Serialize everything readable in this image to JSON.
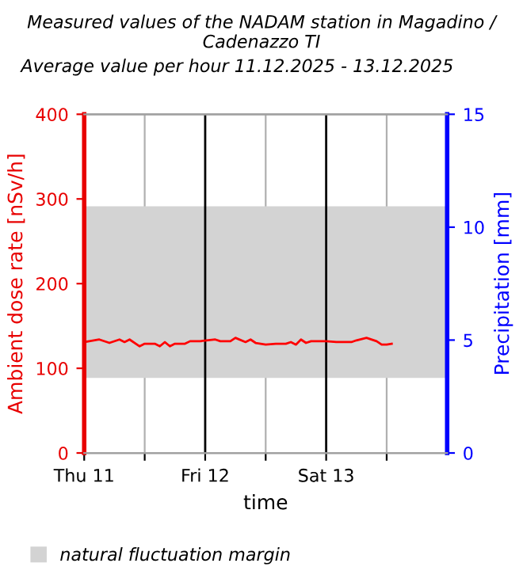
{
  "chart_data": {
    "type": "line",
    "title": "Measured values of the NADAM station in Magadino / Cadenazzo TI",
    "subtitle": "Average value per hour 11.12.2025 - 13.12.2025",
    "xlabel": "time",
    "ylabel": "Ambient dose rate [nSv/h]",
    "y2label": "Precipitation [mm]",
    "xlim": [
      "2025-12-11T00:00",
      "2025-12-14T00:00"
    ],
    "xticks": [
      {
        "value": "2025-12-11T00:00",
        "label": "Thu 11"
      },
      {
        "value": "2025-12-11T12:00",
        "label": null
      },
      {
        "value": "2025-12-12T00:00",
        "label": "Fri 12"
      },
      {
        "value": "2025-12-12T12:00",
        "label": null
      },
      {
        "value": "2025-12-13T00:00",
        "label": "Sat 13"
      },
      {
        "value": "2025-12-13T12:00",
        "label": null
      }
    ],
    "ylim": [
      0,
      400
    ],
    "yticks": [
      0,
      100,
      200,
      300,
      400
    ],
    "y2lim": [
      0,
      15
    ],
    "y2ticks": [
      0,
      5,
      10,
      15
    ],
    "grid": "x",
    "legend": "bottom",
    "marker": "none",
    "line_style": "solid",
    "bands": [
      {
        "axis": "y",
        "from": 90,
        "to": 290,
        "label": "natural fluctuation margin",
        "color": "#d3d3d3"
      }
    ],
    "series": [
      {
        "color": "#ff0000",
        "x": [
          "2025-12-11T00:00",
          "2025-12-11T01:00",
          "2025-12-11T03:00",
          "2025-12-11T05:00",
          "2025-12-11T07:00",
          "2025-12-11T08:00",
          "2025-12-11T09:00",
          "2025-12-11T11:00",
          "2025-12-11T12:00",
          "2025-12-11T14:00",
          "2025-12-11T15:00",
          "2025-12-11T16:00",
          "2025-12-11T17:00",
          "2025-12-11T18:00",
          "2025-12-11T20:00",
          "2025-12-11T21:00",
          "2025-12-11T23:00",
          "2025-12-12T02:00",
          "2025-12-12T03:00",
          "2025-12-12T05:00",
          "2025-12-12T06:00",
          "2025-12-12T08:00",
          "2025-12-12T09:00",
          "2025-12-12T10:00",
          "2025-12-12T12:00",
          "2025-12-12T14:00",
          "2025-12-12T16:00",
          "2025-12-12T17:00",
          "2025-12-12T18:00",
          "2025-12-12T19:00",
          "2025-12-12T20:00",
          "2025-12-12T21:00",
          "2025-12-13T00:00",
          "2025-12-13T02:00",
          "2025-12-13T05:00",
          "2025-12-13T06:00",
          "2025-12-13T08:00",
          "2025-12-13T10:00",
          "2025-12-13T11:00",
          "2025-12-13T12:00",
          "2025-12-13T13:00"
        ],
        "values": [
          131,
          132,
          134,
          130,
          134,
          131,
          134,
          126,
          129,
          129,
          126,
          131,
          126,
          129,
          129,
          132,
          132,
          134,
          132,
          132,
          136,
          131,
          134,
          130,
          128,
          129,
          129,
          131,
          128,
          134,
          130,
          132,
          132,
          131,
          131,
          133,
          136,
          132,
          128,
          128,
          129
        ]
      }
    ]
  }
}
